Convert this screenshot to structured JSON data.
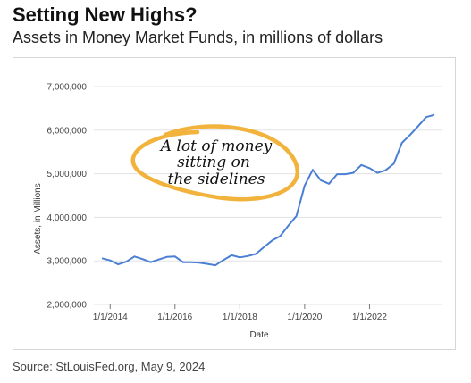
{
  "header": {
    "title": "Setting New Highs?",
    "subtitle": "Assets in Money Market Funds, in millions of dollars"
  },
  "footer": {
    "source": "Source: StLouisFed.org, May 9, 2024"
  },
  "colors": {
    "line": "#4a7fd4",
    "annotation_ring": "#f2b33d",
    "grid": "#e3e3e3"
  },
  "chart_data": {
    "type": "line",
    "xlabel": "Date",
    "ylabel": "Assets, in Millions",
    "ylim": [
      2000000,
      7000000
    ],
    "yticks": [
      2000000,
      3000000,
      4000000,
      5000000,
      6000000,
      7000000
    ],
    "ytick_labels": [
      "2,000,000",
      "3,000,000",
      "4,000,000",
      "5,000,000",
      "6,000,000",
      "7,000,000"
    ],
    "xlim": [
      "2013-07-01",
      "2024-04-01"
    ],
    "xticks": [
      "2014-01-01",
      "2016-01-01",
      "2018-01-01",
      "2020-01-01",
      "2022-01-01"
    ],
    "xtick_labels": [
      "1/1/2014",
      "1/1/2016",
      "1/1/2018",
      "1/1/2020",
      "1/1/2022"
    ],
    "grid": "horizontal",
    "legend": "none",
    "annotation": {
      "lines": [
        "A lot of money",
        "sitting on",
        "the sidelines"
      ]
    },
    "series": [
      {
        "x": [
          "2013-10-01",
          "2014-01-01",
          "2014-04-01",
          "2014-07-01",
          "2014-10-01",
          "2015-01-01",
          "2015-04-01",
          "2015-07-01",
          "2015-10-01",
          "2016-01-01",
          "2016-04-01",
          "2016-07-01",
          "2016-10-01",
          "2017-01-01",
          "2017-04-01",
          "2017-07-01",
          "2017-10-01",
          "2018-01-01",
          "2018-04-01",
          "2018-07-01",
          "2018-10-01",
          "2019-01-01",
          "2019-04-01",
          "2019-07-01",
          "2019-10-01",
          "2020-01-01",
          "2020-04-01",
          "2020-07-01",
          "2020-10-01",
          "2021-01-01",
          "2021-04-01",
          "2021-07-01",
          "2021-10-01",
          "2022-01-01",
          "2022-04-01",
          "2022-07-01",
          "2022-10-01",
          "2023-01-01",
          "2023-04-01",
          "2023-07-01",
          "2023-10-01",
          "2024-01-01"
        ],
        "values": [
          3060000,
          3010000,
          2920000,
          2980000,
          3100000,
          3040000,
          2970000,
          3030000,
          3090000,
          3100000,
          2970000,
          2970000,
          2960000,
          2930000,
          2900000,
          3020000,
          3130000,
          3080000,
          3110000,
          3160000,
          3320000,
          3470000,
          3570000,
          3810000,
          4030000,
          4730000,
          5090000,
          4850000,
          4770000,
          4990000,
          4990000,
          5020000,
          5200000,
          5130000,
          5020000,
          5080000,
          5230000,
          5710000,
          5890000,
          6090000,
          6300000,
          6350000
        ]
      }
    ]
  }
}
